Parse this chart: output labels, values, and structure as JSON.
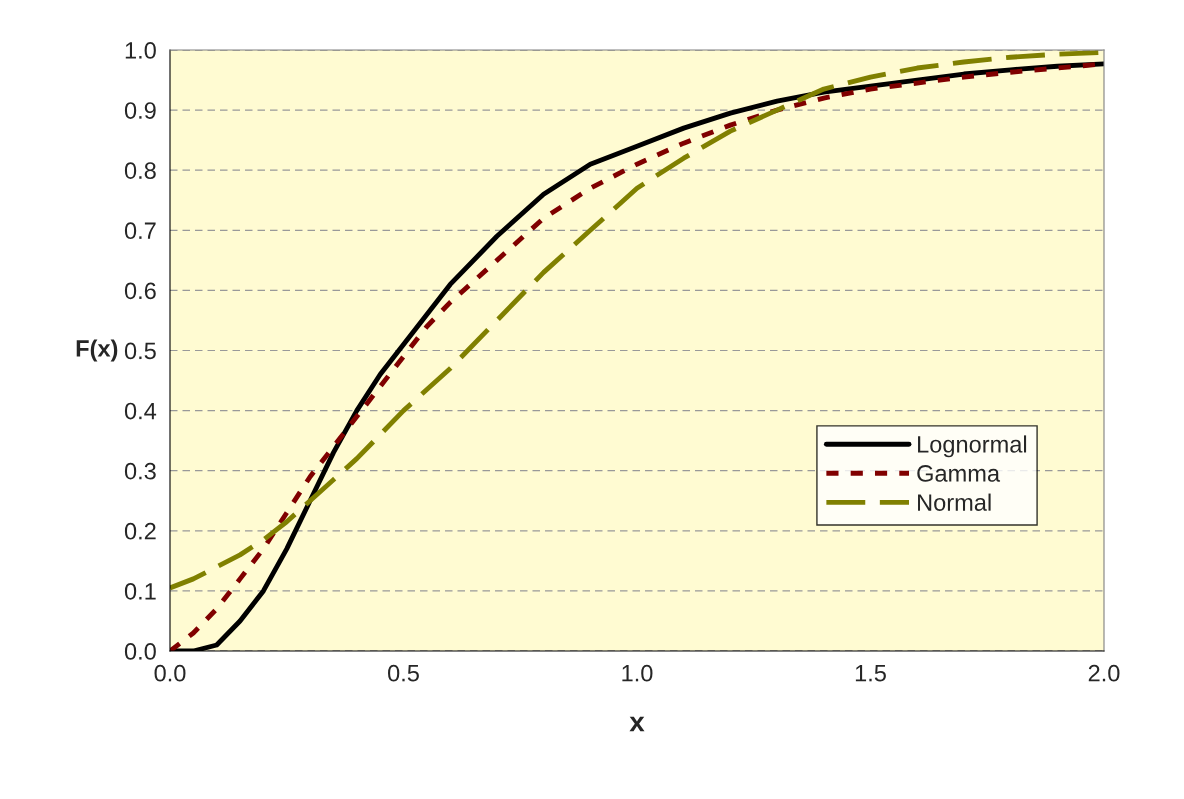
{
  "chart_data": {
    "type": "line",
    "xlabel": "x",
    "ylabel": "F(x)",
    "xlim": [
      0,
      2
    ],
    "xticks": [
      {
        "value": 0,
        "label": "0.0"
      },
      {
        "value": 0.5,
        "label": "0.5"
      },
      {
        "value": 1,
        "label": "1.0"
      },
      {
        "value": 1.5,
        "label": "1.5"
      },
      {
        "value": 2,
        "label": "2.0"
      }
    ],
    "ylim": [
      0,
      1
    ],
    "yticks": [
      {
        "value": 0,
        "label": "0.0"
      },
      {
        "value": 0.1,
        "label": "0.1"
      },
      {
        "value": 0.2,
        "label": "0.2"
      },
      {
        "value": 0.3,
        "label": "0.3"
      },
      {
        "value": 0.4,
        "label": "0.4"
      },
      {
        "value": 0.5,
        "label": "0.5"
      },
      {
        "value": 0.6,
        "label": "0.6"
      },
      {
        "value": 0.7,
        "label": "0.7"
      },
      {
        "value": 0.8,
        "label": "0.8"
      },
      {
        "value": 0.9,
        "label": "0.9"
      },
      {
        "value": 1,
        "label": "1.0"
      }
    ],
    "grid": "y",
    "legend": "right",
    "x": [
      0,
      0.05,
      0.1,
      0.15,
      0.2,
      0.25,
      0.3,
      0.35,
      0.4,
      0.45,
      0.5,
      0.55,
      0.6,
      0.7,
      0.8,
      0.9,
      1.0,
      1.1,
      1.2,
      1.3,
      1.4,
      1.5,
      1.6,
      1.7,
      1.8,
      1.9,
      2.0
    ],
    "series": [
      {
        "name": "Lognormal",
        "color": "#000000",
        "line_style": "solid",
        "values": [
          0,
          0,
          0.01,
          0.05,
          0.1,
          0.17,
          0.25,
          0.33,
          0.4,
          0.46,
          0.51,
          0.56,
          0.61,
          0.69,
          0.76,
          0.81,
          0.84,
          0.87,
          0.895,
          0.915,
          0.93,
          0.94,
          0.95,
          0.96,
          0.967,
          0.973,
          0.977
        ]
      },
      {
        "name": "Gamma",
        "color": "#800000",
        "line_style": "dotted",
        "values": [
          0,
          0.03,
          0.07,
          0.12,
          0.17,
          0.23,
          0.29,
          0.34,
          0.39,
          0.44,
          0.49,
          0.54,
          0.58,
          0.65,
          0.72,
          0.77,
          0.81,
          0.845,
          0.875,
          0.9,
          0.92,
          0.935,
          0.945,
          0.955,
          0.963,
          0.97,
          0.977
        ]
      },
      {
        "name": "Normal",
        "color": "#808000",
        "line_style": "dashed",
        "values": [
          0.105,
          0.12,
          0.14,
          0.16,
          0.185,
          0.215,
          0.25,
          0.285,
          0.32,
          0.36,
          0.4,
          0.435,
          0.47,
          0.55,
          0.63,
          0.7,
          0.77,
          0.82,
          0.865,
          0.9,
          0.935,
          0.955,
          0.97,
          0.98,
          0.988,
          0.993,
          0.996
        ]
      }
    ]
  }
}
